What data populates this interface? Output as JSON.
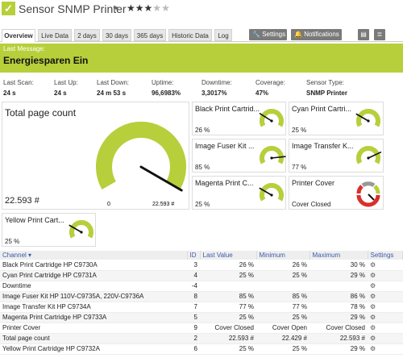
{
  "header": {
    "title": "Sensor SNMP Printer",
    "stars_filled": 3,
    "stars_total": 5
  },
  "tabs": [
    "Overview",
    "Live Data",
    "2 days",
    "30 days",
    "365 days",
    "Historic Data",
    "Log"
  ],
  "buttons": {
    "settings": "Settings",
    "notifications": "Notifications"
  },
  "message": {
    "label": "Last Message:",
    "text": "Energiesparen Ein"
  },
  "stats": [
    {
      "label": "Last Scan:",
      "value": "24 s"
    },
    {
      "label": "Last Up:",
      "value": "24 s"
    },
    {
      "label": "Last Down:",
      "value": "24 m 53 s"
    },
    {
      "label": "Uptime:",
      "value": "96,6983%"
    },
    {
      "label": "Downtime:",
      "value": "3,3017%"
    },
    {
      "label": "Coverage:",
      "value": "47%"
    },
    {
      "label": "Sensor Type:",
      "value": "SNMP Printer"
    }
  ],
  "main_gauge": {
    "title": "Total page count",
    "value": "22.593 #",
    "min": "0",
    "max": "22.593 #",
    "fraction": 1.0
  },
  "gauges": [
    {
      "title": "Black Print Cartrid...",
      "value": "26 %",
      "fraction": 0.26
    },
    {
      "title": "Cyan Print Cartri...",
      "value": "25 %",
      "fraction": 0.25
    },
    {
      "title": "Image Fuser Kit ...",
      "value": "85 %",
      "fraction": 0.85
    },
    {
      "title": "Image Transfer K...",
      "value": "77 %",
      "fraction": 0.77
    },
    {
      "title": "Magenta Print C...",
      "value": "25 %",
      "fraction": 0.25
    },
    {
      "title": "Printer Cover",
      "value": "Cover Closed"
    },
    {
      "title": "Yellow Print Cart...",
      "value": "25 %",
      "fraction": 0.25
    }
  ],
  "colors": {
    "accent": "#b7cf3b",
    "link": "#3a5ba8",
    "needle": "#111111"
  },
  "table": {
    "headers": [
      "Channel",
      "ID",
      "Last Value",
      "Minimum",
      "Maximum",
      "Settings"
    ],
    "rows": [
      [
        "Black Print Cartridge HP C9730A",
        "3",
        "26 %",
        "26 %",
        "30 %"
      ],
      [
        "Cyan Print Cartridge HP C9731A",
        "4",
        "25 %",
        "25 %",
        "29 %"
      ],
      [
        "Downtime",
        "-4",
        "",
        "",
        ""
      ],
      [
        "Image Fuser Kit HP 110V-C9735A, 220V-C9736A",
        "8",
        "85 %",
        "85 %",
        "86 %"
      ],
      [
        "Image Transfer Kit HP C9734A",
        "7",
        "77 %",
        "77 %",
        "78 %"
      ],
      [
        "Magenta Print Cartridge HP C9733A",
        "5",
        "25 %",
        "25 %",
        "29 %"
      ],
      [
        "Printer Cover",
        "9",
        "Cover Closed",
        "Cover Open",
        "Cover Closed"
      ],
      [
        "Total page count",
        "2",
        "22.593 #",
        "22.429 #",
        "22.593 #"
      ],
      [
        "Yellow Print Cartridge HP C9732A",
        "6",
        "25 %",
        "25 %",
        "29 %"
      ]
    ]
  }
}
